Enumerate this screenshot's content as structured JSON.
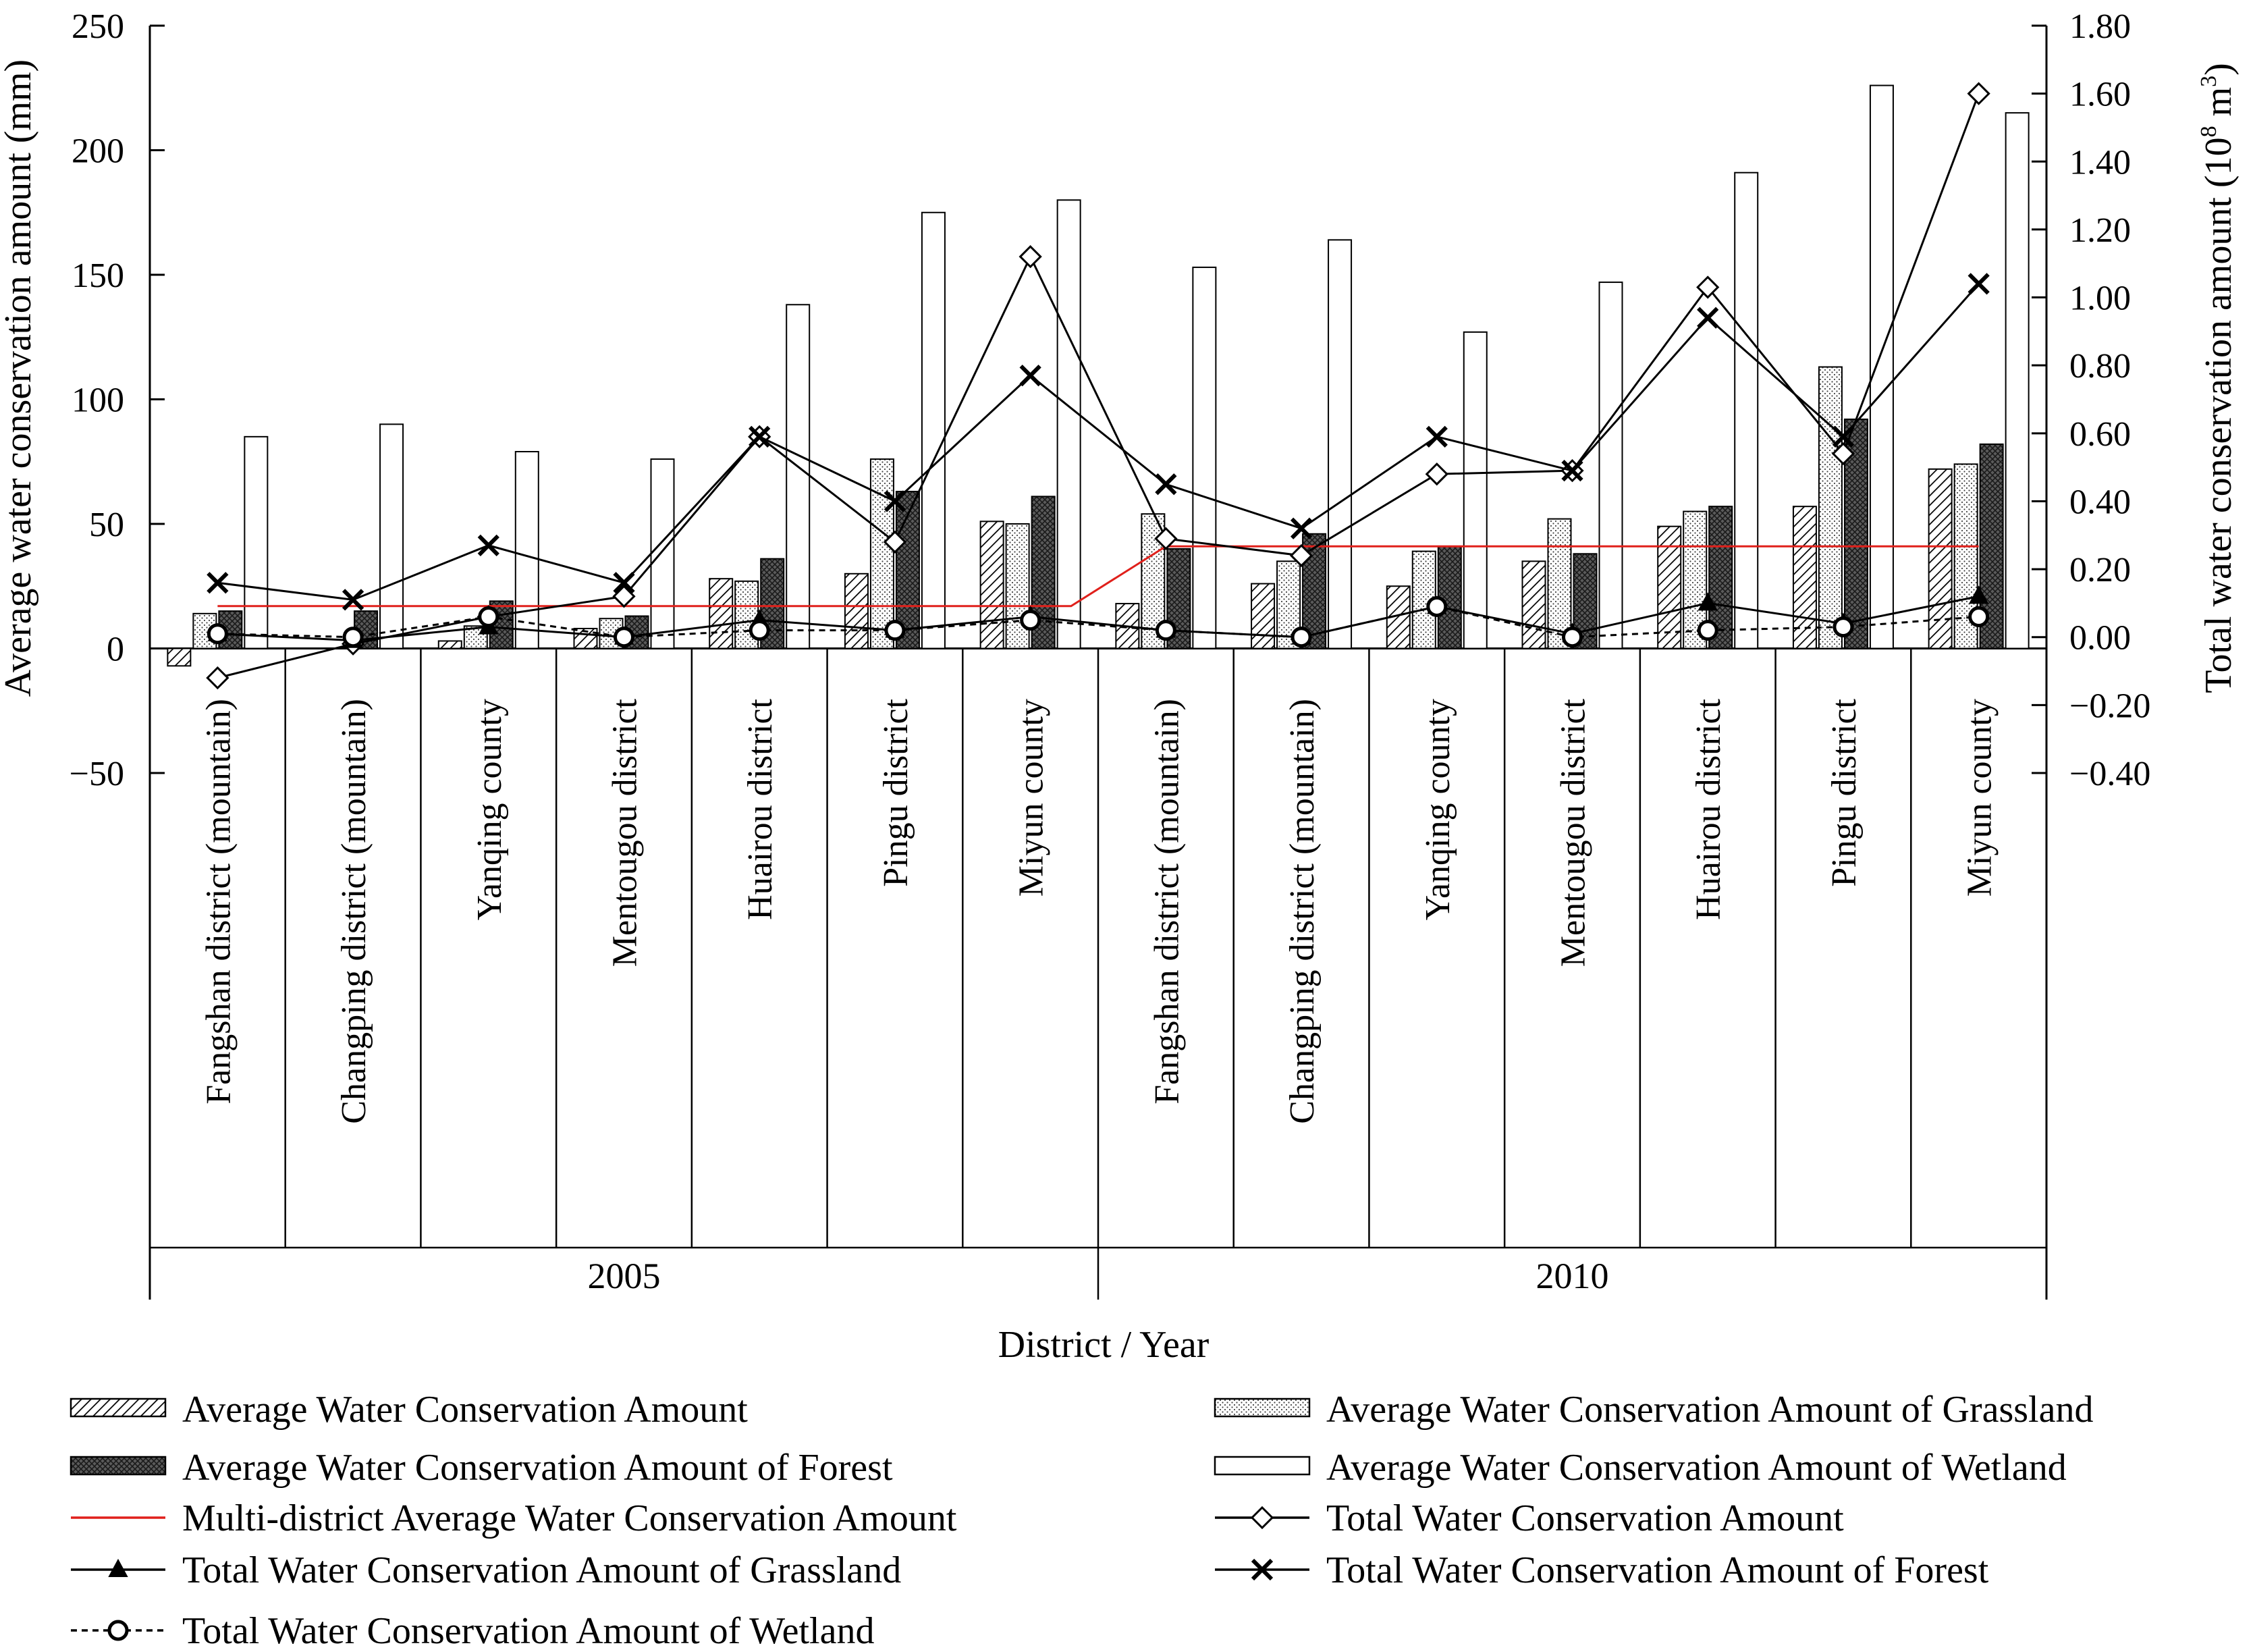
{
  "chart_data": {
    "type": "bar",
    "xlabel": "District / Year",
    "ylabel_left": "Average water conservation amount (mm)",
    "ylabel_right_main": "Total water conservation amount (10",
    "ylabel_right_sup": "8",
    "ylabel_right_tail": " m",
    "ylabel_right_sup2": "3",
    "ylabel_right_end": ")",
    "ylim_left": [
      -50,
      250
    ],
    "ylim_right": [
      -0.4,
      1.8
    ],
    "left_ticks": [
      "250",
      "200",
      "150",
      "100",
      "50",
      "0",
      "−50"
    ],
    "left_tick_values": [
      250,
      200,
      150,
      100,
      50,
      0,
      -50
    ],
    "right_ticks": [
      "1.80",
      "1.60",
      "1.40",
      "1.20",
      "1.00",
      "0.80",
      "0.60",
      "0.40",
      "0.20",
      "0.00",
      "−0.20",
      "−0.40"
    ],
    "right_tick_values": [
      1.8,
      1.6,
      1.4,
      1.2,
      1.0,
      0.8,
      0.6,
      0.4,
      0.2,
      0.0,
      -0.2,
      -0.4
    ],
    "years": [
      "2005",
      "2010"
    ],
    "categories": [
      "Fangshan district (mountain)",
      "Changping district (mountain)",
      "Yanqing county",
      "Mentougou district",
      "Huairou district",
      "Pingu district",
      "Miyun county",
      "Fangshan district (mountain)",
      "Changping district (mountain)",
      "Yanqing county",
      "Mentougou district",
      "Huairou district",
      "Pingu district",
      "Miyun county"
    ],
    "bar_series": [
      {
        "name": "Average Water Conservation Amount",
        "pattern": "hatch",
        "values": [
          -7,
          0,
          3,
          8,
          28,
          30,
          51,
          18,
          26,
          25,
          35,
          49,
          57,
          72
        ]
      },
      {
        "name": "Average Water Conservation Amount of Grassland",
        "pattern": "dots",
        "values": [
          14,
          0,
          9,
          12,
          27,
          76,
          50,
          54,
          35,
          39,
          52,
          55,
          113,
          74
        ]
      },
      {
        "name": "Average Water Conservation Amount of Forest",
        "pattern": "dark",
        "values": [
          15,
          15,
          19,
          13,
          36,
          63,
          61,
          40,
          46,
          41,
          38,
          57,
          92,
          82
        ]
      },
      {
        "name": "Average Water Conservation Amount of Wetland",
        "pattern": "white",
        "values": [
          85,
          90,
          79,
          76,
          138,
          175,
          180,
          153,
          164,
          127,
          147,
          191,
          226,
          215
        ]
      }
    ],
    "line_series": [
      {
        "name": "Multi-district Average Water Conservation Amount",
        "axis": "left",
        "color": "#e0201b",
        "marker": "none",
        "style": "solid",
        "values": [
          17,
          17,
          17,
          17,
          17,
          17,
          17,
          41,
          41,
          41,
          41,
          41,
          41,
          41
        ]
      },
      {
        "name": "Total Water Conservation Amount",
        "axis": "right",
        "color": "#000000",
        "marker": "diamond",
        "style": "solid",
        "values": [
          -0.12,
          -0.02,
          0.06,
          0.12,
          0.59,
          0.28,
          1.12,
          0.29,
          0.24,
          0.48,
          0.49,
          1.03,
          0.54,
          1.6
        ]
      },
      {
        "name": "Total Water Conservation Amount of Grassland",
        "axis": "right",
        "color": "#000000",
        "marker": "triangle",
        "style": "solid",
        "values": [
          0.01,
          -0.01,
          0.03,
          0.0,
          0.05,
          0.02,
          0.06,
          0.02,
          0.0,
          0.09,
          0.01,
          0.1,
          0.04,
          0.12
        ]
      },
      {
        "name": "Total Water Conservation Amount of Forest",
        "axis": "right",
        "color": "#000000",
        "marker": "cross",
        "style": "solid",
        "values": [
          0.16,
          0.11,
          0.27,
          0.16,
          0.59,
          0.4,
          0.77,
          0.45,
          0.32,
          0.59,
          0.49,
          0.94,
          0.59,
          1.04
        ]
      },
      {
        "name": "Total Water Conservation Amount of Wetland",
        "axis": "right",
        "color": "#000000",
        "marker": "circle",
        "style": "dashed",
        "values": [
          0.01,
          0.0,
          0.06,
          0.0,
          0.02,
          0.02,
          0.05,
          0.02,
          0.0,
          0.09,
          0.0,
          0.02,
          0.03,
          0.06
        ]
      }
    ],
    "grid": false,
    "legend_position": "bottom"
  }
}
